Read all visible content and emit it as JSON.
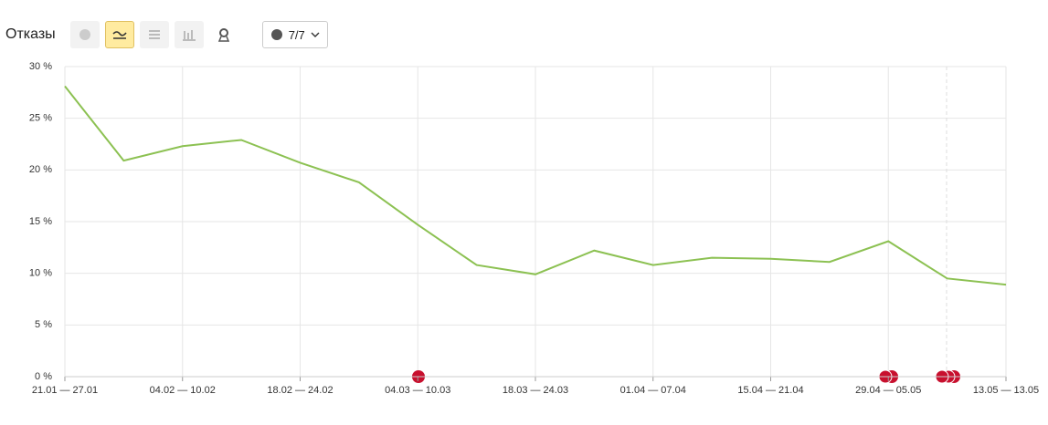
{
  "toolbar": {
    "label": "Отказы",
    "dropdown": "7/7"
  },
  "chart_data": {
    "type": "line",
    "categories": [
      "21.01 — 27.01",
      null,
      "04.02 — 10.02",
      null,
      "18.02 — 24.02",
      null,
      "04.03 — 10.03",
      null,
      "18.03 — 24.03",
      null,
      "01.04 — 07.04",
      null,
      "15.04 — 21.04",
      null,
      "29.04 — 05.05",
      null,
      "13.05 — 13.05"
    ],
    "series": [
      {
        "name": "Отказы",
        "color": "#8cc152",
        "values": [
          28.1,
          20.9,
          22.3,
          22.9,
          20.7,
          18.8,
          14.7,
          10.8,
          9.9,
          12.2,
          10.8,
          11.5,
          11.4,
          11.1,
          13.1,
          9.5,
          8.9
        ]
      }
    ],
    "ylim": [
      0,
      30
    ],
    "yticks": [
      {
        "value": 0,
        "label": "0 %"
      },
      {
        "value": 5,
        "label": "5 %"
      },
      {
        "value": 10,
        "label": "10 %"
      },
      {
        "value": 15,
        "label": "15 %"
      },
      {
        "value": 20,
        "label": "20 %"
      },
      {
        "value": 25,
        "label": "25 %"
      },
      {
        "value": 30,
        "label": "30 %"
      }
    ],
    "grid": true
  }
}
